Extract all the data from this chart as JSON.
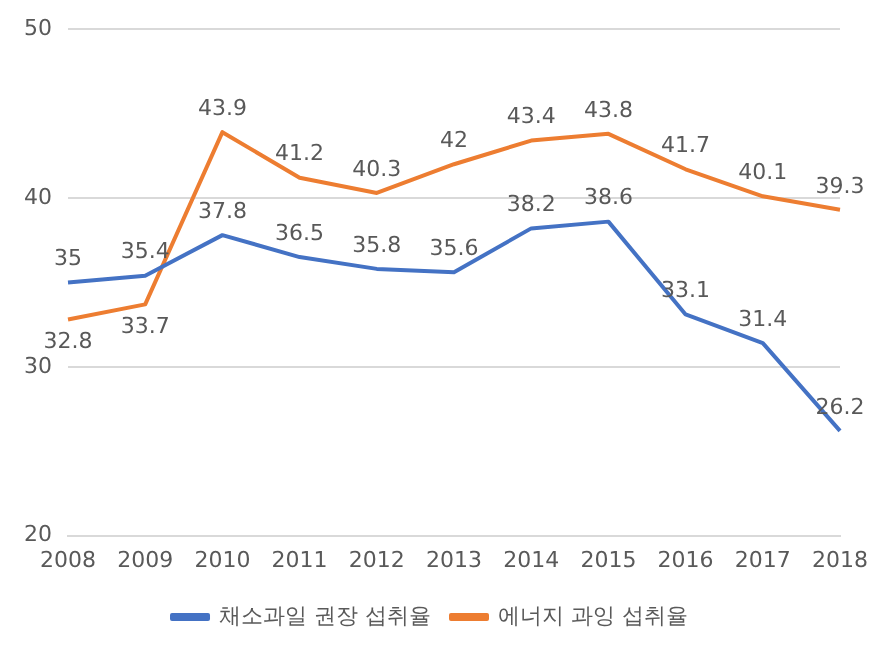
{
  "chart_data": {
    "type": "line",
    "categories": [
      "2008",
      "2009",
      "2010",
      "2011",
      "2012",
      "2013",
      "2014",
      "2015",
      "2016",
      "2017",
      "2018"
    ],
    "series": [
      {
        "name": "채소과일 권장 섭취율",
        "color": "#4472c4",
        "values": [
          35,
          35.4,
          37.8,
          36.5,
          35.8,
          35.6,
          38.2,
          38.6,
          33.1,
          31.4,
          26.2
        ]
      },
      {
        "name": "에너지 과잉 섭취율",
        "color": "#ed7d31",
        "values": [
          32.8,
          33.7,
          43.9,
          41.2,
          40.3,
          42,
          43.4,
          43.8,
          41.7,
          40.1,
          39.3
        ]
      }
    ],
    "ylim": [
      20,
      50
    ],
    "yticks": [
      20,
      30,
      40,
      50
    ],
    "grid": "y",
    "legend": "bottom",
    "marker": "none",
    "line_style": "solid",
    "data_labels": true
  }
}
